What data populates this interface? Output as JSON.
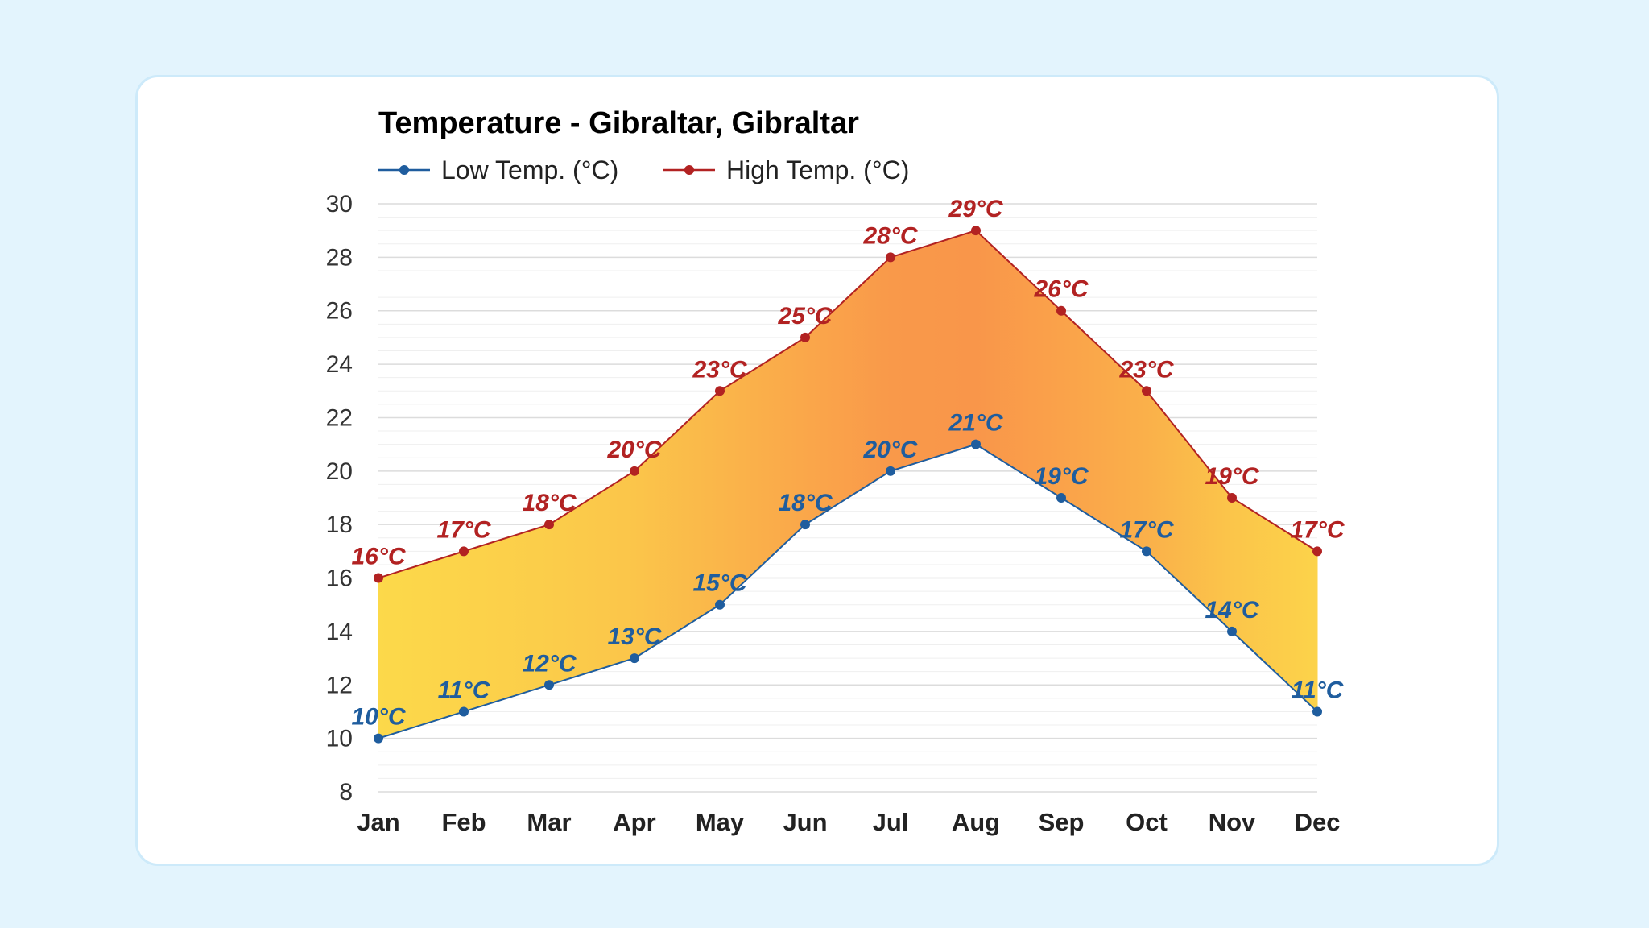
{
  "chart_data": {
    "type": "area",
    "title": "Temperature - Gibraltar, Gibraltar",
    "categories": [
      "Jan",
      "Feb",
      "Mar",
      "Apr",
      "May",
      "Jun",
      "Jul",
      "Aug",
      "Sep",
      "Oct",
      "Nov",
      "Dec"
    ],
    "series": [
      {
        "name": "Low Temp. (°C)",
        "color": "#1f5d9e",
        "values": [
          10,
          11,
          12,
          13,
          15,
          18,
          20,
          21,
          19,
          17,
          14,
          11
        ],
        "labels": [
          "10°C",
          "11°C",
          "12°C",
          "13°C",
          "15°C",
          "18°C",
          "20°C",
          "21°C",
          "19°C",
          "17°C",
          "14°C",
          "11°C"
        ]
      },
      {
        "name": "High Temp. (°C)",
        "color": "#b22222",
        "values": [
          16,
          17,
          18,
          20,
          23,
          25,
          28,
          29,
          26,
          23,
          19,
          17
        ],
        "labels": [
          "16°C",
          "17°C",
          "18°C",
          "20°C",
          "23°C",
          "25°C",
          "28°C",
          "29°C",
          "26°C",
          "23°C",
          "19°C",
          "17°C"
        ]
      }
    ],
    "yticks": [
      "30",
      "28",
      "26",
      "24",
      "22",
      "20",
      "18",
      "16",
      "14",
      "12",
      "10",
      "8"
    ],
    "ylim": [
      8,
      30
    ],
    "xlabel": "",
    "ylabel": "",
    "grid": true,
    "legend": "top-left",
    "fill_colors": {
      "cool": "#fcd94a",
      "warm": "#f9964a"
    }
  }
}
